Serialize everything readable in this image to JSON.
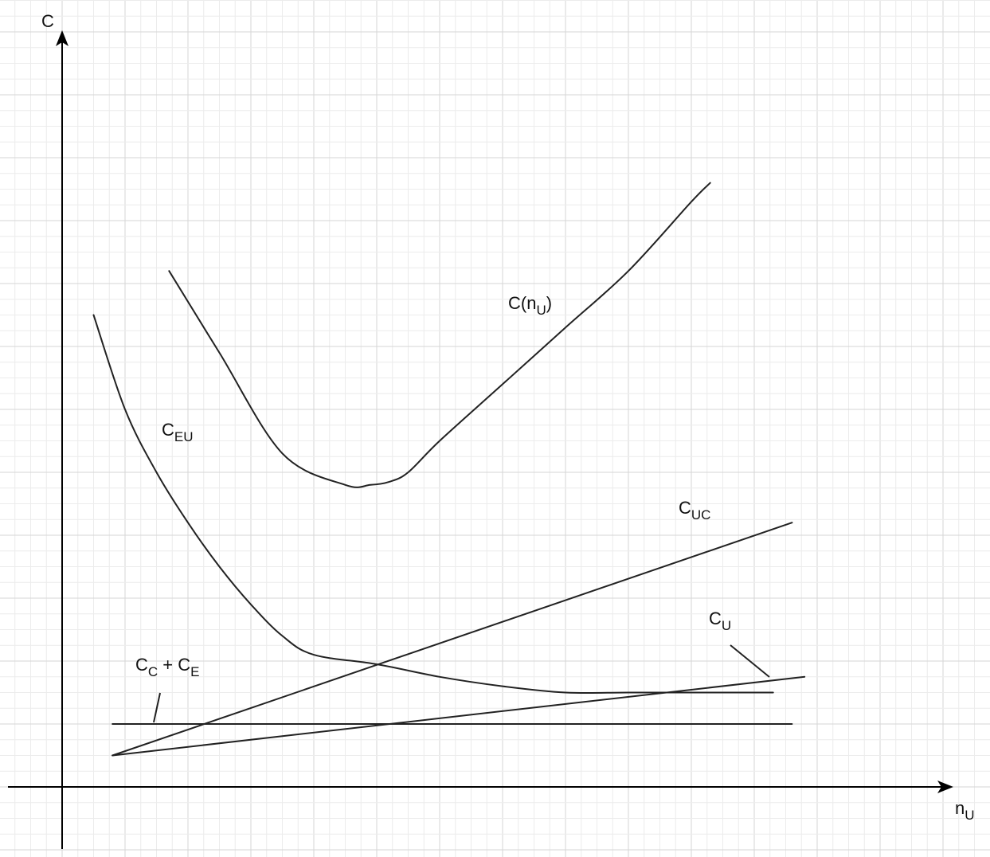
{
  "chart_data": {
    "type": "line",
    "title": "",
    "xlabel": {
      "main": "n",
      "sub": "U"
    },
    "ylabel": {
      "main": "C",
      "sub": ""
    },
    "grid": true,
    "legend": "none",
    "xlim": [
      0,
      14.5
    ],
    "ylim": [
      -1,
      12
    ],
    "series": [
      {
        "id": "total",
        "label": {
          "main": "C(n",
          "sub": "U",
          "tail": ")"
        },
        "x": [
          1.7,
          2.5,
          3.5,
          4.5,
          4.9,
          5.2,
          5.5,
          6.0,
          7.0,
          8.0,
          9.0,
          10.0,
          10.3
        ],
        "y": [
          8.2,
          6.9,
          5.3,
          4.8,
          4.8,
          4.85,
          5.0,
          5.5,
          6.4,
          7.3,
          8.2,
          9.3,
          9.6
        ]
      },
      {
        "id": "eu",
        "label": {
          "main": "C",
          "sub": "EU",
          "tail": ""
        },
        "x": [
          0.5,
          1.0,
          1.5,
          2.0,
          2.5,
          3.0,
          3.5,
          4.0,
          5.0,
          6.0,
          7.0,
          8.0,
          9.0,
          10.0,
          11.0,
          11.3
        ],
        "y": [
          7.5,
          6.0,
          5.0,
          4.2,
          3.5,
          2.9,
          2.4,
          2.1,
          1.95,
          1.75,
          1.6,
          1.5,
          1.5,
          1.5,
          1.5,
          1.5
        ]
      },
      {
        "id": "uc",
        "label": {
          "main": "C",
          "sub": "UC",
          "tail": ""
        },
        "x": [
          0.8,
          11.6
        ],
        "y": [
          0.5,
          4.2
        ]
      },
      {
        "id": "u",
        "label": {
          "main": "C",
          "sub": "U",
          "tail": ""
        },
        "x": [
          0.8,
          11.8
        ],
        "y": [
          0.5,
          1.75
        ]
      },
      {
        "id": "ce",
        "label": {
          "main": "C",
          "sub": "C",
          "tail": " + C",
          "sub2": "E"
        },
        "x": [
          0.8,
          11.6
        ],
        "y": [
          1.0,
          1.0
        ]
      }
    ]
  }
}
